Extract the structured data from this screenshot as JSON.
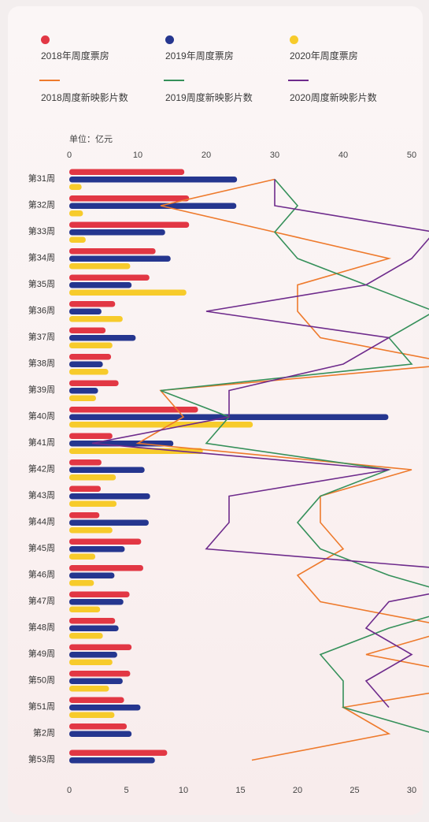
{
  "legend": [
    {
      "label": "2018年周度票房",
      "kind": "bar",
      "color": "#e23744"
    },
    {
      "label": "2019年周度票房",
      "kind": "bar",
      "color": "#25368f"
    },
    {
      "label": "2020年周度票房",
      "kind": "bar",
      "color": "#f7cb2b"
    },
    {
      "label": "2018周度新映影片数",
      "kind": "line",
      "color": "#ee7a2c"
    },
    {
      "label": "2019周度新映影片数",
      "kind": "line",
      "color": "#35905a"
    },
    {
      "label": "2020周度新映影片数",
      "kind": "line",
      "color": "#6e2b8c"
    }
  ],
  "chart_data": {
    "type": "bar",
    "orientation": "horizontal",
    "unit_label": "单位：亿元",
    "categories": [
      "第31周",
      "第32周",
      "第33周",
      "第34周",
      "第35周",
      "第36周",
      "第37周",
      "第38周",
      "第39周",
      "第40周",
      "第41周",
      "第42周",
      "第43周",
      "第44周",
      "第45周",
      "第46周",
      "第47周",
      "第48周",
      "第49周",
      "第50周",
      "第51周",
      "第2周",
      "第53周"
    ],
    "top_axis": {
      "ticks": [
        0,
        10,
        20,
        30,
        40,
        50
      ],
      "range": [
        0,
        50
      ]
    },
    "bottom_axis": {
      "ticks": [
        0,
        5,
        10,
        15,
        20,
        25,
        30
      ],
      "range": [
        0,
        30
      ]
    },
    "series": [
      {
        "name": "2018年周度票房",
        "axis": "top",
        "color": "#e23744",
        "values": [
          16.8,
          17.5,
          17.5,
          12.6,
          11.7,
          6.7,
          5.3,
          6.1,
          7.2,
          18.8,
          6.3,
          4.7,
          4.6,
          4.4,
          10.5,
          10.8,
          8.8,
          6.7,
          9.1,
          8.9,
          8.0,
          8.4,
          14.3
        ]
      },
      {
        "name": "2019年周度票房",
        "axis": "top",
        "color": "#25368f",
        "values": [
          24.5,
          24.4,
          14.0,
          14.8,
          9.1,
          4.7,
          9.7,
          4.9,
          4.2,
          46.6,
          15.2,
          11.0,
          11.8,
          11.6,
          8.1,
          6.6,
          7.9,
          7.2,
          7.0,
          7.8,
          10.4,
          9.1,
          12.5
        ]
      },
      {
        "name": "2020年周度票房",
        "axis": "top",
        "color": "#f7cb2b",
        "values": [
          1.8,
          2.0,
          2.4,
          8.9,
          17.1,
          7.8,
          6.3,
          5.7,
          3.9,
          26.8,
          19.5,
          6.8,
          6.9,
          6.3,
          3.8,
          3.6,
          4.5,
          4.9,
          6.3,
          5.8,
          6.6,
          null,
          null
        ]
      },
      {
        "name": "2018周度新映影片数",
        "axis": "bottom",
        "kind": "line",
        "color": "#ee7a2c",
        "values": [
          18,
          8,
          18,
          28,
          20,
          20,
          22,
          34,
          8,
          10,
          6,
          30,
          22,
          22,
          24,
          20,
          22,
          34,
          26,
          38,
          24,
          28,
          16
        ]
      },
      {
        "name": "2019周度新映影片数",
        "axis": "bottom",
        "kind": "line",
        "color": "#35905a",
        "values": [
          18,
          20,
          18,
          20,
          26,
          32,
          28,
          30,
          8,
          14,
          12,
          28,
          22,
          20,
          22,
          28,
          36,
          28,
          22,
          24,
          24,
          32,
          null
        ]
      },
      {
        "name": "2020周度新映影片数",
        "axis": "bottom",
        "kind": "line",
        "color": "#6e2b8c",
        "values": [
          18,
          18,
          32,
          30,
          26,
          12,
          28,
          24,
          14,
          14,
          2,
          28,
          14,
          14,
          12,
          40,
          28,
          26,
          30,
          26,
          28,
          null,
          null
        ]
      }
    ]
  }
}
